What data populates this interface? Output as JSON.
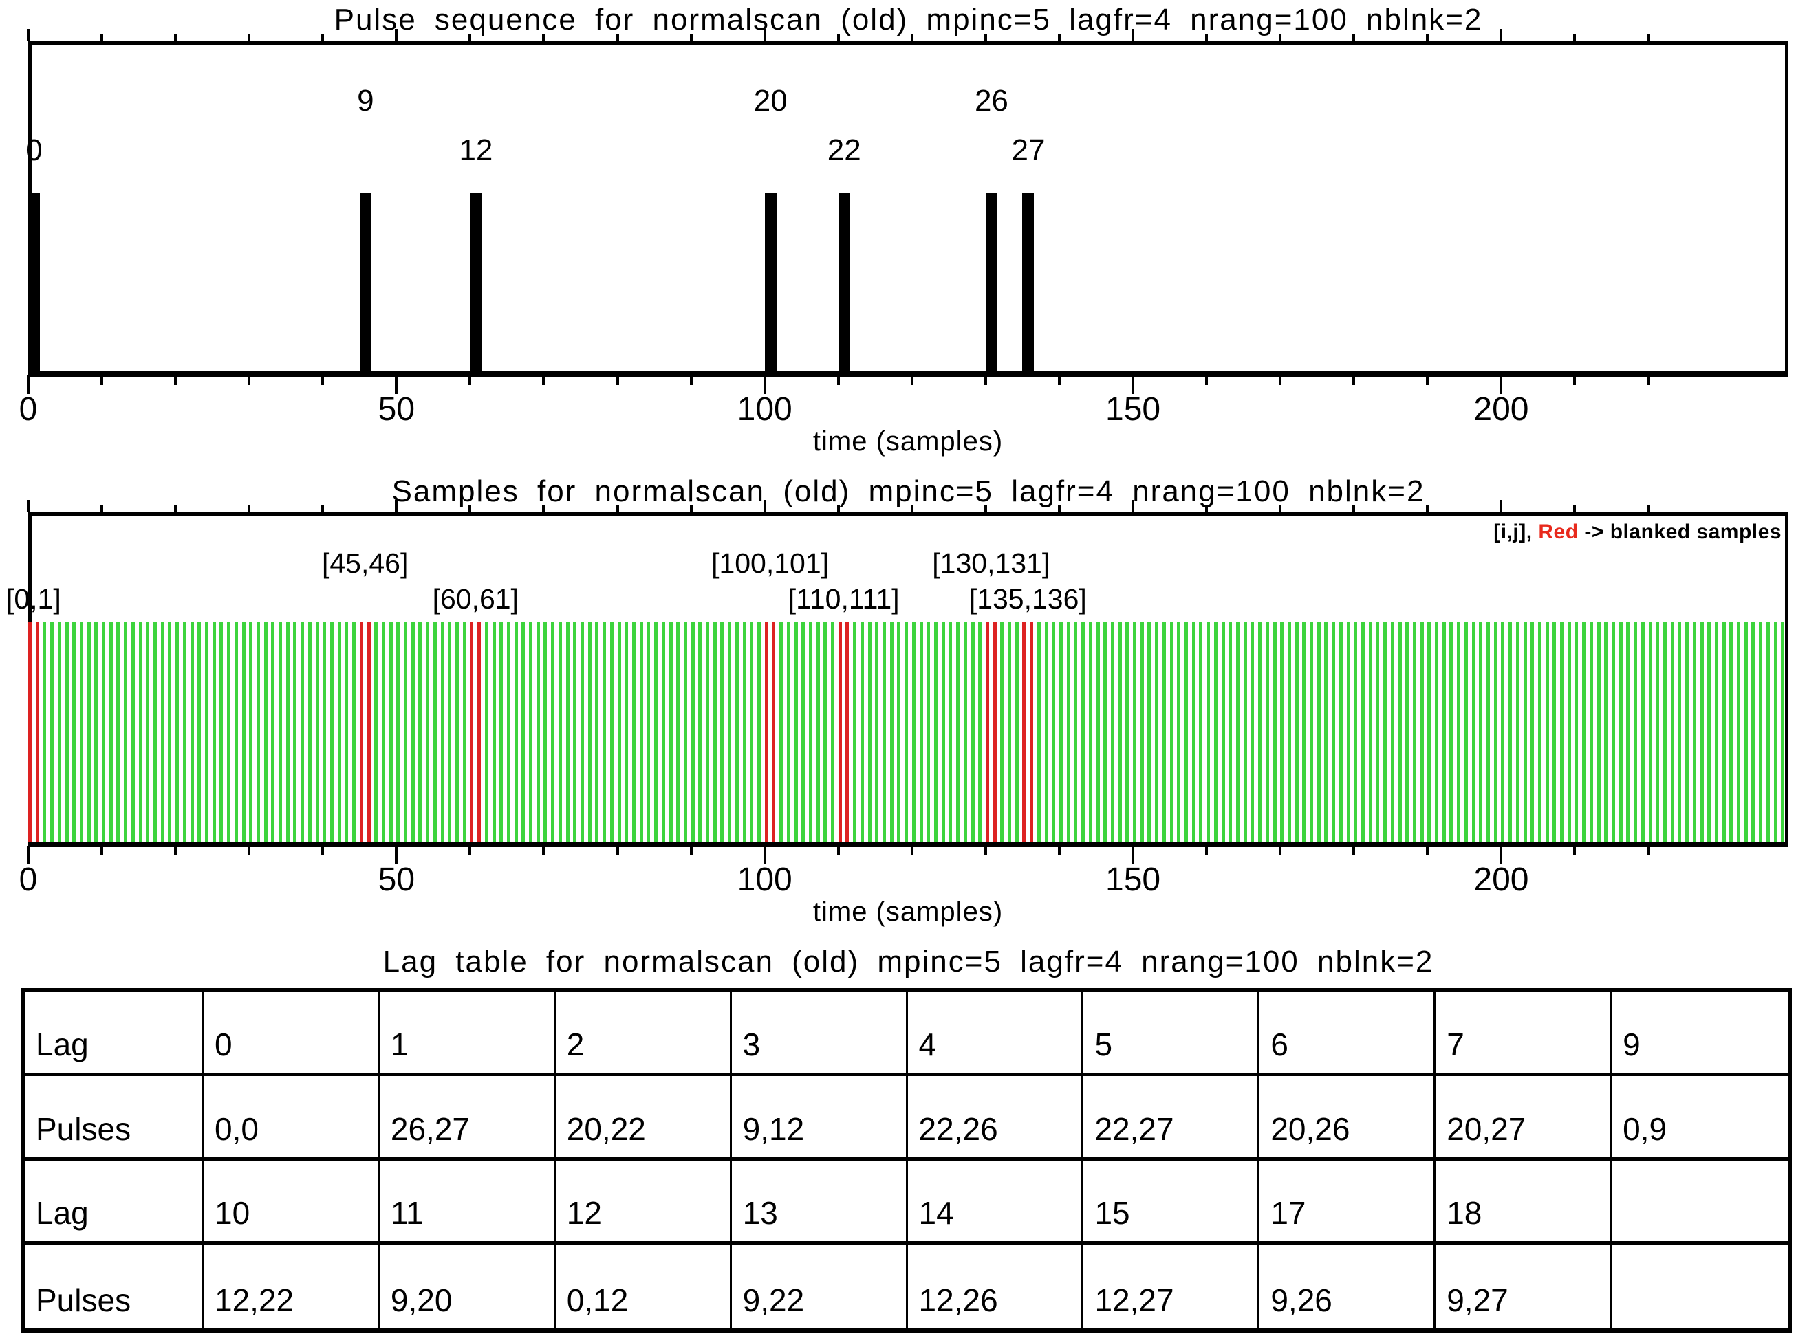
{
  "figure": {
    "background": "#ffffff",
    "text_color": "#000000"
  },
  "chart_data": [
    {
      "id": "pulse_sequence",
      "type": "bar",
      "title": "Pulse sequence for normalscan (old) mpinc=5 lagfr=4 nrang=100 nblnk=2",
      "xlabel": "time (samples)",
      "xlim": [
        0,
        239
      ],
      "x_major_ticks": [
        0,
        50,
        100,
        150,
        200
      ],
      "x_minor_tick_step": 10,
      "grid": false,
      "categories": [
        "0",
        "9",
        "12",
        "20",
        "22",
        "26",
        "27"
      ],
      "x": [
        0,
        45,
        60,
        100,
        110,
        130,
        135
      ],
      "values": [
        1,
        1,
        1,
        1,
        1,
        1,
        1
      ],
      "label_rows": [
        "lower",
        "upper",
        "lower",
        "upper",
        "lower",
        "upper",
        "lower"
      ],
      "bar_color": "#000000"
    },
    {
      "id": "samples",
      "type": "bar",
      "title": "Samples for normalscan (old) mpinc=5 lagfr=4 nrang=100 nblnk=2",
      "xlabel": "time (samples)",
      "xlim": [
        0,
        239
      ],
      "x_major_ticks": [
        0,
        50,
        100,
        150,
        200
      ],
      "x_minor_tick_step": 10,
      "grid": false,
      "n_samples": 239,
      "blanked_samples": [
        0,
        1,
        45,
        46,
        60,
        61,
        100,
        101,
        110,
        111,
        130,
        131,
        135,
        136
      ],
      "blanked_pairs": [
        [
          0,
          1
        ],
        [
          45,
          46
        ],
        [
          60,
          61
        ],
        [
          100,
          101
        ],
        [
          110,
          111
        ],
        [
          130,
          131
        ],
        [
          135,
          136
        ]
      ],
      "pair_labels": [
        "[0,1]",
        "[45,46]",
        "[60,61]",
        "[100,101]",
        "[110,111]",
        "[130,131]",
        "[135,136]"
      ],
      "pair_label_rows": [
        "lower",
        "upper",
        "lower",
        "upper",
        "lower",
        "upper",
        "lower"
      ],
      "sample_color": "#3dd43d",
      "blanked_color": "#dd2222",
      "annotation": {
        "prefix": "[i,j], ",
        "highlight": "Red",
        "suffix": " -> blanked samples",
        "highlight_color": "#e8291c"
      }
    },
    {
      "id": "lag_table",
      "type": "table",
      "title": "Lag table for normalscan (old) mpinc=5 lagfr=4 nrang=100 nblnk=2",
      "rows": [
        [
          "Lag",
          "0",
          "1",
          "2",
          "3",
          "4",
          "5",
          "6",
          "7",
          "9"
        ],
        [
          "Pulses",
          "0,0",
          "26,27",
          "20,22",
          "9,12",
          "22,26",
          "22,27",
          "20,26",
          "20,27",
          "0,9"
        ],
        [
          "Lag",
          "10",
          "11",
          "12",
          "13",
          "14",
          "15",
          "17",
          "18",
          ""
        ],
        [
          "Pulses",
          "12,22",
          "9,20",
          "0,12",
          "9,22",
          "12,26",
          "12,27",
          "9,26",
          "9,27",
          ""
        ]
      ]
    }
  ]
}
